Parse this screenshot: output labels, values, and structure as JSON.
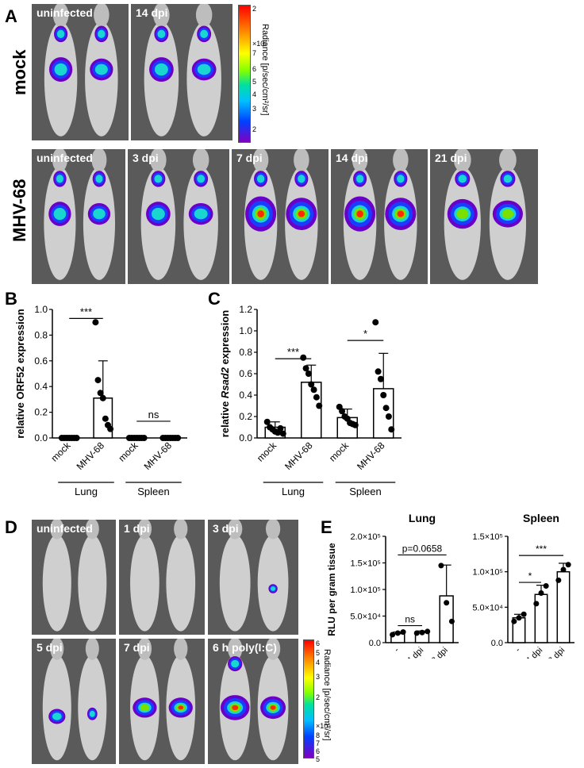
{
  "panels": {
    "A": {
      "letter": "A",
      "row_mock": "mock",
      "row_mhv": "MHV-68",
      "mock_labels": [
        "uninfected",
        "14 dpi"
      ],
      "mhv_labels": [
        "uninfected",
        "3 dpi",
        "7 dpi",
        "14 dpi",
        "21 dpi"
      ],
      "colorbar": {
        "title": "Radiance [p/sec/cm²/sr]",
        "ticks": [
          "2",
          "×10⁶",
          "7",
          "6",
          "5",
          "4",
          "3",
          "2"
        ]
      }
    },
    "B": {
      "letter": "B"
    },
    "C": {
      "letter": "C"
    },
    "D": {
      "letter": "D",
      "top_labels": [
        "uninfected",
        "1 dpi",
        "3 dpi"
      ],
      "bottom_labels": [
        "5 dpi",
        "7 dpi",
        "6 h poly(I:C)"
      ],
      "colorbar": {
        "title": "Radiance [p/sec/cm²/sr]",
        "ticks": [
          "6",
          "5",
          "4",
          "3",
          "2",
          "×10⁵",
          "8",
          "7",
          "6",
          "5"
        ]
      }
    },
    "E": {
      "letter": "E"
    }
  },
  "chart_data": [
    {
      "id": "B",
      "type": "bar",
      "ylabel": "relative ORF52 expression",
      "ylim": [
        0,
        1.0
      ],
      "yticks": [
        "0.0",
        "0.2",
        "0.4",
        "0.6",
        "0.8",
        "1.0"
      ],
      "categories": [
        "mock",
        "MHV-68",
        "mock",
        "MHV-68"
      ],
      "groups": [
        "Lung",
        "Spleen"
      ],
      "values": [
        0.0,
        0.31,
        0.0,
        0.0
      ],
      "error": [
        0.0,
        0.29,
        0.0,
        0.0
      ],
      "points": [
        [
          0,
          0,
          0,
          0,
          0,
          0,
          0
        ],
        [
          0.9,
          0.45,
          0.35,
          0.31,
          0.15,
          0.1,
          0.07
        ],
        [
          0,
          0,
          0,
          0,
          0,
          0,
          0
        ],
        [
          0,
          0,
          0,
          0,
          0,
          0,
          0
        ]
      ],
      "annotations": [
        {
          "text": "***",
          "from": 0,
          "to": 1,
          "y": 0.93
        },
        {
          "text": "ns",
          "from": 2,
          "to": 3,
          "y": 0.13
        }
      ]
    },
    {
      "id": "C",
      "type": "bar",
      "ylabel_pre": "relative ",
      "ylabel_italic": "Rsad2",
      "ylabel_post": " expression",
      "ylim": [
        0,
        1.2
      ],
      "yticks": [
        "0.0",
        "0.2",
        "0.4",
        "0.6",
        "0.8",
        "1.0",
        "1.2"
      ],
      "categories": [
        "mock",
        "MHV-68",
        "mock",
        "MHV-68"
      ],
      "groups": [
        "Lung",
        "Spleen"
      ],
      "values": [
        0.1,
        0.52,
        0.19,
        0.46
      ],
      "error": [
        0.05,
        0.16,
        0.08,
        0.33
      ],
      "points": [
        [
          0.15,
          0.1,
          0.08,
          0.06,
          0.05,
          0.09,
          0.04
        ],
        [
          0.75,
          0.65,
          0.6,
          0.5,
          0.45,
          0.38,
          0.3
        ],
        [
          0.29,
          0.25,
          0.2,
          0.18,
          0.14,
          0.13,
          0.12
        ],
        [
          1.08,
          0.62,
          0.55,
          0.4,
          0.28,
          0.2,
          0.08
        ]
      ],
      "annotations": [
        {
          "text": "***",
          "from": 0,
          "to": 1,
          "y": 0.74
        },
        {
          "text": "*",
          "from": 2,
          "to": 3,
          "y": 0.91
        }
      ]
    },
    {
      "id": "E-lung",
      "type": "bar",
      "title": "Lung",
      "ylabel": "RLU per gram tissue",
      "ylim": [
        0,
        200000
      ],
      "yticks": [
        "0.0",
        "5.0×10⁴",
        "1.0×10⁵",
        "1.5×10⁵",
        "2.0×10⁵"
      ],
      "categories": [
        "-",
        "4 dpi",
        "8 dpi"
      ],
      "values": [
        17000,
        19000,
        88000
      ],
      "error": [
        3000,
        3000,
        58000
      ],
      "points": [
        [
          15000,
          18000,
          20000
        ],
        [
          18000,
          19000,
          21000
        ],
        [
          145000,
          75000,
          40000
        ]
      ],
      "annotations": [
        {
          "text": "ns",
          "from": 0,
          "to": 1,
          "y": 32000
        },
        {
          "text": "p=0.0658",
          "from": 0,
          "to": 2,
          "y": 165000
        }
      ]
    },
    {
      "id": "E-spleen",
      "type": "bar",
      "title": "Spleen",
      "ylabel": "",
      "ylim": [
        0,
        150000
      ],
      "yticks": [
        "0.0",
        "5.0×10⁴",
        "1.0×10⁵",
        "1.5×10⁵"
      ],
      "categories": [
        "-",
        "4 dpi",
        "8 dpi"
      ],
      "values": [
        35000,
        68000,
        100000
      ],
      "error": [
        5000,
        13000,
        12000
      ],
      "points": [
        [
          30000,
          35000,
          40000
        ],
        [
          55000,
          70000,
          80000
        ],
        [
          88000,
          103000,
          110000
        ]
      ],
      "annotations": [
        {
          "text": "*",
          "from": 0,
          "to": 1,
          "y": 85000
        },
        {
          "text": "***",
          "from": 0,
          "to": 2,
          "y": 123000
        }
      ]
    }
  ]
}
